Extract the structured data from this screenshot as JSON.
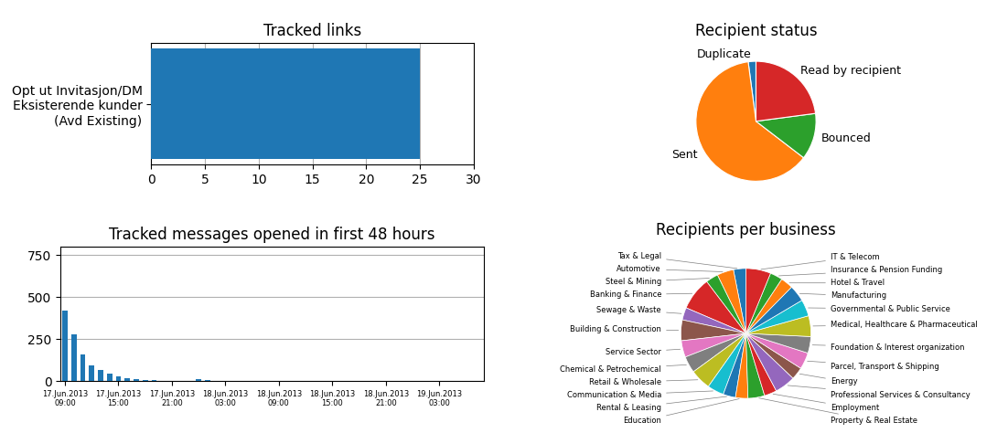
{
  "chart_data": [
    {
      "type": "bar",
      "orientation": "horizontal",
      "title": "Tracked links",
      "categories": [
        "Opt ut Invitasjon/DM\nEksisterende kunder\n(Avd Existing)"
      ],
      "values": [
        25
      ],
      "xlim": [
        0,
        30
      ],
      "xticks": [
        0,
        5,
        10,
        15,
        20,
        25,
        30
      ],
      "grid": true
    },
    {
      "type": "pie",
      "title": "Recipient status",
      "categories": [
        "Duplicate",
        "Sent",
        "Bounced",
        "Read by recipient"
      ],
      "values": [
        2,
        60,
        12,
        22
      ]
    },
    {
      "type": "bar",
      "title": "Tracked messages opened in first 48 hours",
      "x": [
        0,
        1,
        2,
        3,
        4,
        5,
        6,
        7,
        8,
        9,
        10,
        15,
        16,
        29,
        30,
        31,
        32,
        33,
        34,
        35,
        36,
        37,
        38,
        40,
        42,
        43,
        44,
        45
      ],
      "values": [
        420,
        280,
        160,
        95,
        65,
        42,
        28,
        16,
        11,
        7,
        5,
        13,
        7,
        2,
        2,
        2,
        1,
        1,
        1,
        1,
        1,
        1,
        1,
        1,
        1,
        1,
        1,
        1
      ],
      "xlim": [
        -0.5,
        47
      ],
      "xticks": [
        {
          "value": 0,
          "label": "17.Jun.2013\n09:00"
        },
        {
          "value": 6,
          "label": "17.Jun.2013\n15:00"
        },
        {
          "value": 12,
          "label": "17.Jun.2013\n21:00"
        },
        {
          "value": 18,
          "label": "18.Jun.2013\n03:00"
        },
        {
          "value": 24,
          "label": "18.Jun.2013\n09:00"
        },
        {
          "value": 30,
          "label": "18.Jun.2013\n15:00"
        },
        {
          "value": 36,
          "label": "18.Jun.2013\n21:00"
        },
        {
          "value": 42,
          "label": "19.Jun.2013\n03:00"
        }
      ],
      "ylim": [
        0,
        800
      ],
      "yticks": [
        0,
        250,
        500,
        750
      ],
      "grid": true
    },
    {
      "type": "pie",
      "title": "Recipients per business",
      "categories": [
        "Tax & Legal",
        "Automotive",
        "Steel & Mining",
        "Banking & Finance",
        "Sewage & Waste",
        "Building & Construction",
        "Service Sector",
        "Chemical & Petrochemical",
        "Retail & Wholesale",
        "Communication & Media",
        "Rental & Leasing",
        "Education",
        "Property & Real Estate",
        "Employment",
        "Professional Services & Consultancy",
        "Energy",
        "Parcel, Transport & Shipping",
        "Foundation & Interest organization",
        "Medical, Healthcare & Pharmaceutical",
        "Governmental & Public Service",
        "Manufacturing",
        "Hotel & Travel",
        "Insurance & Pension Funding",
        "IT & Telecom"
      ],
      "values": [
        3,
        4,
        3,
        8,
        3,
        5,
        4,
        4,
        5,
        4,
        3,
        3,
        4,
        3,
        5,
        3,
        4,
        4,
        5,
        4,
        4,
        3,
        3,
        6
      ]
    }
  ]
}
